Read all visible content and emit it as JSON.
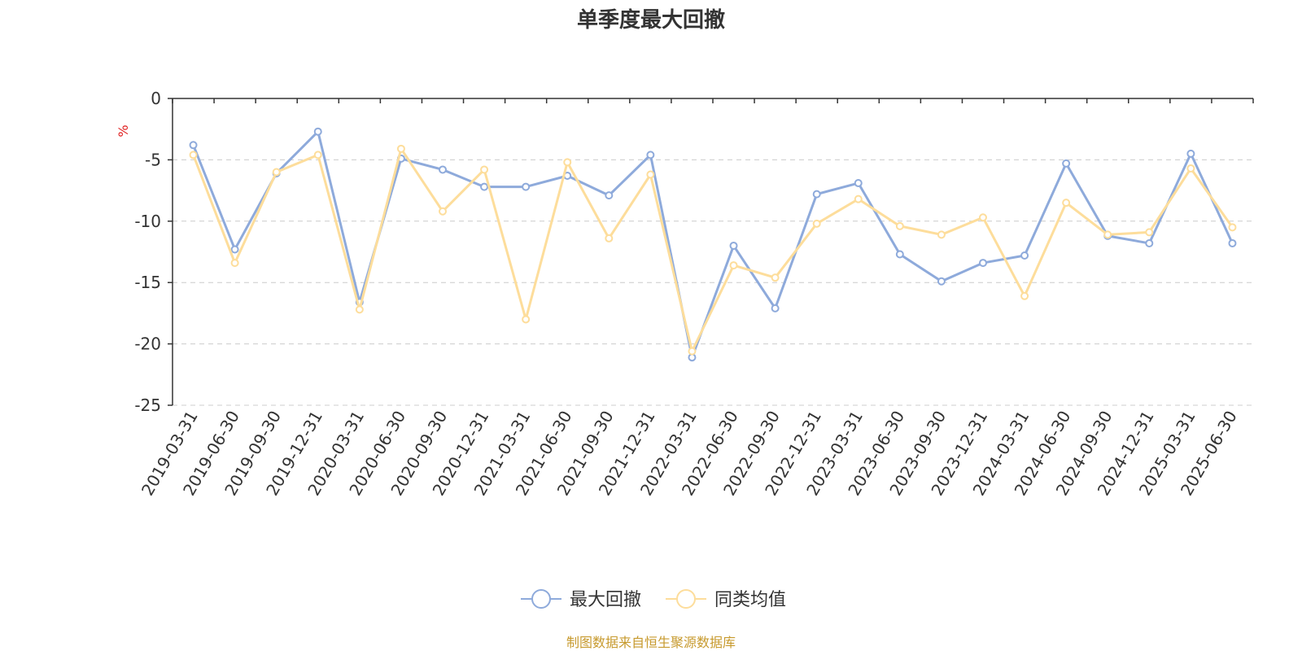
{
  "colors": {
    "series_1": "#8eaadb",
    "series_2": "#fddd9b",
    "unit_label": "#e02020",
    "footer": "#c79a2e",
    "axis": "#333333",
    "grid": "#cccccc"
  },
  "footer": "制图数据来自恒生聚源数据库",
  "chart_data": {
    "type": "line",
    "title": "单季度最大回撤",
    "ylabel": "%",
    "ylim": [
      -25,
      0
    ],
    "yticks": [
      0,
      -5,
      -10,
      -15,
      -20,
      -25
    ],
    "grid": "horizontal-dashed",
    "legend_position": "bottom-center",
    "categories": [
      "2019-03-31",
      "2019-06-30",
      "2019-09-30",
      "2019-12-31",
      "2020-03-31",
      "2020-06-30",
      "2020-09-30",
      "2020-12-31",
      "2021-03-31",
      "2021-06-30",
      "2021-09-30",
      "2021-12-31",
      "2022-03-31",
      "2022-06-30",
      "2022-09-30",
      "2022-12-31",
      "2023-03-31",
      "2023-06-30",
      "2023-09-30",
      "2023-12-31",
      "2024-03-31",
      "2024-06-30",
      "2024-09-30",
      "2024-12-31",
      "2025-03-31",
      "2025-06-30"
    ],
    "series": [
      {
        "name": "最大回撤",
        "color": "#8eaadb",
        "values": [
          -3.8,
          -12.3,
          -6.1,
          -2.7,
          -16.6,
          -4.9,
          -5.8,
          -7.2,
          -7.2,
          -6.3,
          -7.9,
          -4.6,
          -21.1,
          -12.0,
          -17.1,
          -7.8,
          -6.9,
          -12.7,
          -14.9,
          -13.4,
          -12.8,
          -5.3,
          -11.2,
          -11.8,
          -4.5,
          -11.8
        ]
      },
      {
        "name": "同类均值",
        "color": "#fddd9b",
        "values": [
          -4.6,
          -13.4,
          -6.0,
          -4.6,
          -17.2,
          -4.1,
          -9.2,
          -5.8,
          -18.0,
          -5.2,
          -11.4,
          -6.2,
          -20.6,
          -13.6,
          -14.6,
          -10.2,
          -8.2,
          -10.4,
          -11.1,
          -9.7,
          -16.1,
          -8.5,
          -11.1,
          -10.9,
          -5.7,
          -10.5
        ]
      }
    ]
  }
}
